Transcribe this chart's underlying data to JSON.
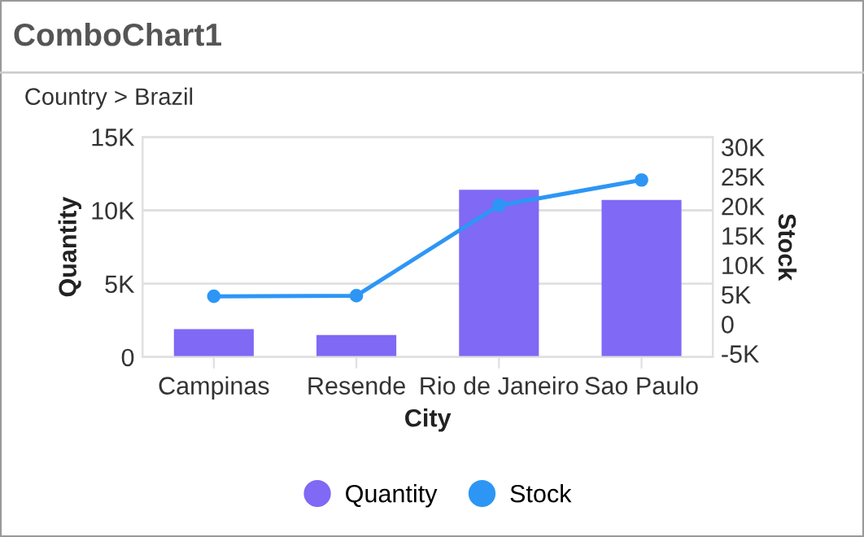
{
  "chart_data": {
    "type": "bar",
    "title": "ComboChart1",
    "subtitle": "Country > Brazil",
    "xlabel": "City",
    "ylabel": "Quantity",
    "y2label": "Stock",
    "categories": [
      "Campinas",
      "Resende",
      "Rio de Janeiro",
      "Sao Paulo"
    ],
    "series": [
      {
        "name": "Quantity",
        "color": "#7f69f5",
        "values": [
          1900,
          1500,
          11400,
          10700
        ]
      },
      {
        "name": "Stock",
        "type": "line",
        "axis": "y2",
        "color": "#2d96f5",
        "marker": "circle",
        "values": [
          4700,
          4800,
          20100,
          24400
        ]
      }
    ],
    "ylim": [
      0,
      15000
    ],
    "yticks": [
      {
        "value": 0,
        "label": "0"
      },
      {
        "value": 5000,
        "label": "5K"
      },
      {
        "value": 10000,
        "label": "10K"
      },
      {
        "value": 15000,
        "label": "15K"
      }
    ],
    "y2lim": [
      -5600,
      31700
    ],
    "y2ticks": [
      {
        "value": -5000,
        "label": "-5K"
      },
      {
        "value": 0,
        "label": "0"
      },
      {
        "value": 5000,
        "label": "5K"
      },
      {
        "value": 10000,
        "label": "10K"
      },
      {
        "value": 15000,
        "label": "15K"
      },
      {
        "value": 20000,
        "label": "20K"
      },
      {
        "value": 25000,
        "label": "25K"
      },
      {
        "value": 30000,
        "label": "30K"
      }
    ],
    "grid": "y",
    "legend": "bottom"
  }
}
